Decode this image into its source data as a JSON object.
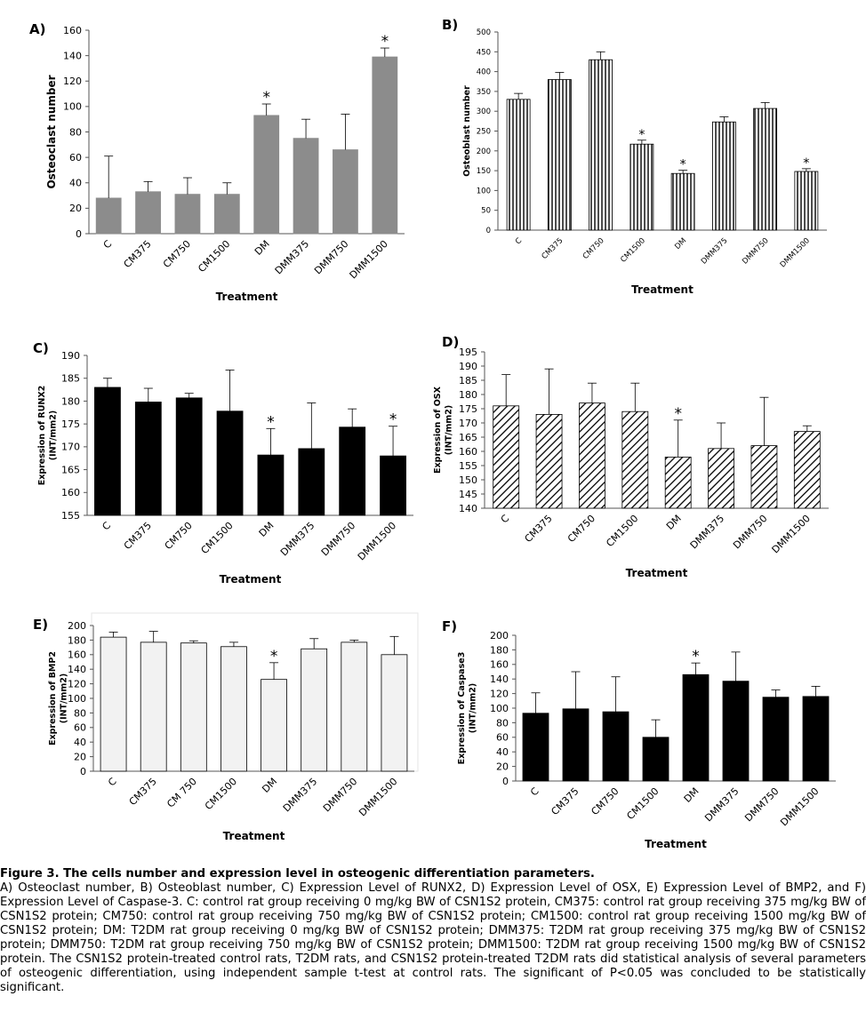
{
  "chart_data": [
    {
      "panel": "A)",
      "type": "bar",
      "categories": [
        "C",
        "CM375",
        "CM750",
        "CM1500",
        "DM",
        "DMM375",
        "DMM750",
        "DMM1500"
      ],
      "values": [
        28,
        33,
        31,
        31,
        93,
        75,
        66,
        139
      ],
      "errors": [
        33,
        8,
        13,
        9,
        9,
        15,
        28,
        7
      ],
      "significant": [
        false,
        false,
        false,
        false,
        true,
        false,
        false,
        true
      ],
      "ylabel": "Osteoclast number",
      "xlabel": "Treatment",
      "ylim": [
        0,
        160
      ],
      "yticks": [
        0,
        20,
        40,
        60,
        80,
        100,
        120,
        140,
        160
      ],
      "fill": "#8c8c8c",
      "pattern": "solid"
    },
    {
      "panel": "B)",
      "type": "bar",
      "categories": [
        "C",
        "CM375",
        "CM750",
        "CM1500",
        "DM",
        "DMM375",
        "DMM750",
        "DMM1500"
      ],
      "values": [
        330,
        380,
        430,
        217,
        143,
        273,
        307,
        148
      ],
      "errors": [
        15,
        18,
        20,
        10,
        8,
        13,
        15,
        7
      ],
      "significant": [
        false,
        false,
        false,
        true,
        true,
        false,
        false,
        true
      ],
      "ylabel": "Osteoblast number",
      "xlabel": "Treatment",
      "ylim": [
        0,
        500
      ],
      "yticks": [
        0,
        50,
        100,
        150,
        200,
        250,
        300,
        350,
        400,
        450,
        500
      ],
      "fill": "#ffffff",
      "pattern": "vertical"
    },
    {
      "panel": "C)",
      "type": "bar",
      "categories": [
        "C",
        "CM375",
        "CM750",
        "CM1500",
        "DM",
        "DMM375",
        "DMM750",
        "DMM1500"
      ],
      "values": [
        183,
        179.8,
        180.7,
        177.8,
        168.2,
        169.6,
        174.3,
        168
      ],
      "errors": [
        2,
        3,
        1,
        9,
        5.8,
        10,
        4,
        6.5
      ],
      "significant": [
        false,
        false,
        false,
        false,
        true,
        false,
        false,
        true
      ],
      "ylabel": "Expression of RUNX2 (INT/mm2)",
      "xlabel": "Treatment",
      "ylim": [
        155,
        190
      ],
      "yticks": [
        155,
        160,
        165,
        170,
        175,
        180,
        185,
        190
      ],
      "fill": "#000000",
      "pattern": "solid"
    },
    {
      "panel": "D)",
      "type": "bar",
      "categories": [
        "C",
        "CM375",
        "CM750",
        "CM1500",
        "DM",
        "DMM375",
        "DMM750",
        "DMM1500"
      ],
      "values": [
        176,
        173,
        177,
        174,
        158,
        161,
        162,
        167
      ],
      "errors": [
        11,
        16,
        7,
        10,
        13,
        9,
        17,
        2
      ],
      "significant": [
        false,
        false,
        false,
        false,
        true,
        false,
        false,
        false
      ],
      "ylabel": "Expression of OSX (INT/mm2)",
      "xlabel": "Treatment",
      "ylim": [
        140,
        195
      ],
      "yticks": [
        140,
        145,
        150,
        155,
        160,
        165,
        170,
        175,
        180,
        185,
        190,
        195
      ],
      "fill": "#ffffff",
      "pattern": "diagonal"
    },
    {
      "panel": "E)",
      "type": "bar",
      "categories": [
        "C",
        "CM375",
        "CM 750",
        "CM1500",
        "DM",
        "DMM375",
        "DMM750",
        "DMM1500"
      ],
      "values": [
        184,
        177,
        176,
        171,
        126,
        168,
        177,
        160
      ],
      "errors": [
        7,
        15,
        3,
        6,
        23,
        14,
        3,
        25
      ],
      "significant": [
        false,
        false,
        false,
        false,
        true,
        false,
        false,
        false
      ],
      "ylabel": "Expression of BMP2 (INT/mm2)",
      "xlabel": "Treatment",
      "ylim": [
        0,
        200
      ],
      "yticks": [
        0,
        20,
        40,
        60,
        80,
        100,
        120,
        140,
        160,
        180,
        200
      ],
      "fill": "#f2f2f2",
      "pattern": "solid"
    },
    {
      "panel": "F)",
      "type": "bar",
      "categories": [
        "C",
        "CM375",
        "CM750",
        "CM1500",
        "DM",
        "DMM375",
        "DMM750",
        "DMM1500"
      ],
      "values": [
        93,
        99,
        95,
        60,
        146,
        137,
        115,
        116
      ],
      "errors": [
        28,
        51,
        48,
        24,
        16,
        40,
        10,
        14
      ],
      "significant": [
        false,
        false,
        false,
        false,
        true,
        false,
        false,
        false
      ],
      "ylabel": "Expression of Caspase3 (INT/mm2)",
      "xlabel": "Treatment",
      "ylim": [
        0,
        200
      ],
      "yticks": [
        0,
        20,
        40,
        60,
        80,
        100,
        120,
        140,
        160,
        180,
        200
      ],
      "fill": "#000000",
      "pattern": "solid"
    }
  ],
  "caption": {
    "title": "Figure 3. The cells number and expression level in osteogenic differentiation parameters.",
    "text": "A) Osteoclast number, B) Osteoblast number, C) Expression Level of RUNX2, D) Expression Level of OSX, E) Expression Level of BMP2, and F) Expression Level of Caspase-3. C: control rat group receiving 0 mg/kg BW of CSN1S2 protein, CM375: control rat group receiving 375 mg/kg BW of CSN1S2 protein; CM750: control rat group receiving 750 mg/kg BW of CSN1S2 protein; CM1500: control rat group receiving 1500 mg/kg BW of CSN1S2 protein; DM: T2DM rat group receiving 0 mg/kg BW of CSN1S2 protein; DMM375: T2DM rat group receiving 375 mg/kg BW of CSN1S2 protein; DMM750: T2DM rat group receiving 750 mg/kg BW of CSN1S2 protein; DMM1500: T2DM rat group receiving 1500 mg/kg BW of CSN1S2 protein. The CSN1S2 protein-treated control rats, T2DM rats, and CSN1S2 protein-treated T2DM rats did statistical analysis of several parameters of osteogenic differentiation, using independent sample t-test at control rats. The significant of P<0.05 was concluded to be statistically significant."
  }
}
